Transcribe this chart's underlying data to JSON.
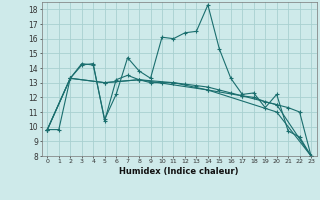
{
  "xlabel": "Humidex (Indice chaleur)",
  "background_color": "#ceeaea",
  "grid_color": "#a8d0d0",
  "line_color": "#1a6e6e",
  "xlim": [
    -0.5,
    23.5
  ],
  "ylim": [
    8,
    18.5
  ],
  "lines": [
    {
      "x": [
        0,
        1,
        2,
        3,
        4,
        5,
        6,
        7,
        8,
        9,
        10,
        11,
        12,
        13,
        14,
        15,
        16,
        17,
        18,
        19,
        20,
        21,
        22,
        23
      ],
      "y": [
        9.8,
        9.8,
        13.3,
        14.3,
        14.2,
        10.5,
        12.2,
        14.7,
        13.8,
        13.3,
        16.1,
        16.0,
        16.4,
        16.5,
        18.3,
        15.3,
        13.3,
        12.2,
        12.3,
        11.3,
        12.2,
        9.7,
        9.3,
        8.0
      ]
    },
    {
      "x": [
        0,
        2,
        3,
        4,
        5,
        6,
        7,
        8,
        9,
        10,
        11,
        12,
        13,
        14,
        15,
        16,
        17,
        18,
        19,
        20,
        21,
        22,
        23
      ],
      "y": [
        9.8,
        13.3,
        14.2,
        14.3,
        10.4,
        13.2,
        13.5,
        13.2,
        13.0,
        13.0,
        13.0,
        12.9,
        12.8,
        12.7,
        12.5,
        12.3,
        12.1,
        12.0,
        11.7,
        11.5,
        11.3,
        11.0,
        8.0
      ]
    },
    {
      "x": [
        0,
        2,
        5,
        8,
        11,
        14,
        17,
        20,
        23
      ],
      "y": [
        9.8,
        13.3,
        13.0,
        13.2,
        13.0,
        12.5,
        12.1,
        11.5,
        8.0
      ]
    },
    {
      "x": [
        0,
        2,
        5,
        8,
        14,
        20,
        23
      ],
      "y": [
        9.8,
        13.3,
        13.0,
        13.2,
        12.5,
        11.0,
        8.0
      ]
    }
  ]
}
